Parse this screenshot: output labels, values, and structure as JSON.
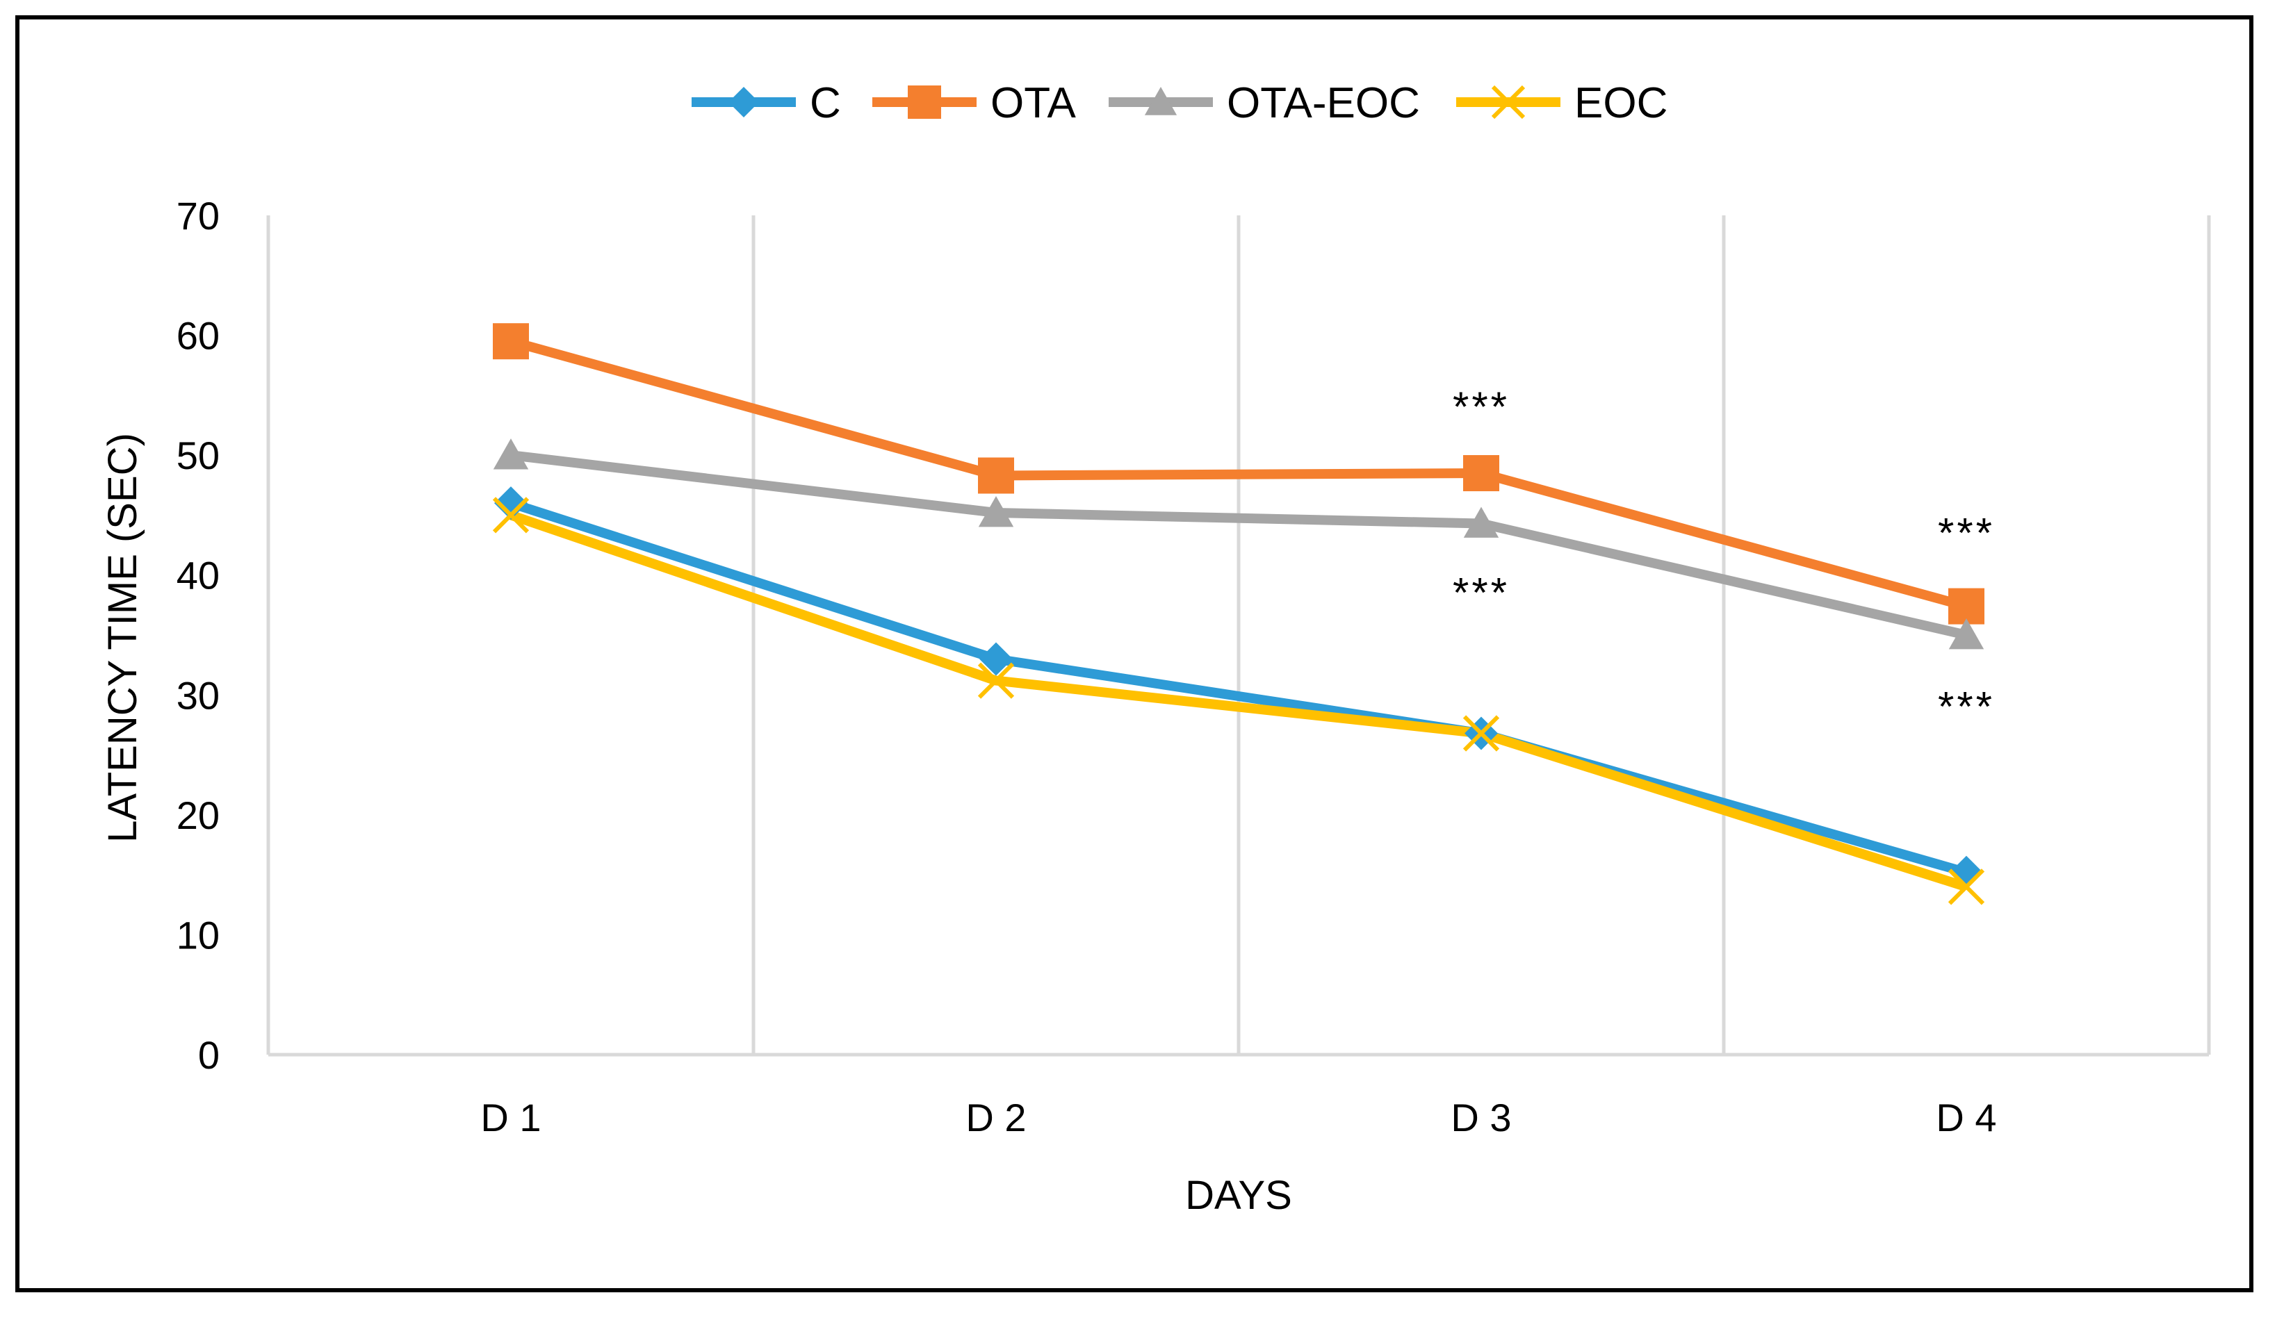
{
  "chart_data": {
    "type": "line",
    "title": "",
    "xlabel": "DAYS",
    "ylabel": "LATENCY TIME (SEC)",
    "categories": [
      "D 1",
      "D 2",
      "D 3",
      "D 4"
    ],
    "ylim": [
      0,
      70
    ],
    "yticks": [
      0,
      10,
      20,
      30,
      40,
      50,
      60,
      70
    ],
    "grid": "vertical",
    "legend_position": "top",
    "series": [
      {
        "name": "C",
        "values": [
          46,
          33,
          26.8,
          15.2
        ],
        "color": "#2E9BD6",
        "marker": "diamond"
      },
      {
        "name": "OTA",
        "values": [
          59.5,
          48.3,
          48.5,
          37.4
        ],
        "color": "#F47F2E",
        "marker": "square"
      },
      {
        "name": "OTA-EOC",
        "values": [
          50,
          45.2,
          44.3,
          35
        ],
        "color": "#A5A5A5",
        "marker": "triangle"
      },
      {
        "name": "EOC",
        "values": [
          45,
          31.2,
          26.8,
          14
        ],
        "color": "#FFC000",
        "marker": "x"
      }
    ],
    "annotations": [
      {
        "text": "***",
        "x": "D 3",
        "y": 54
      },
      {
        "text": "***",
        "x": "D 3",
        "y": 38.5
      },
      {
        "text": "***",
        "x": "D 4",
        "y": 43.5
      },
      {
        "text": "***",
        "x": "D 4",
        "y": 29
      }
    ]
  }
}
